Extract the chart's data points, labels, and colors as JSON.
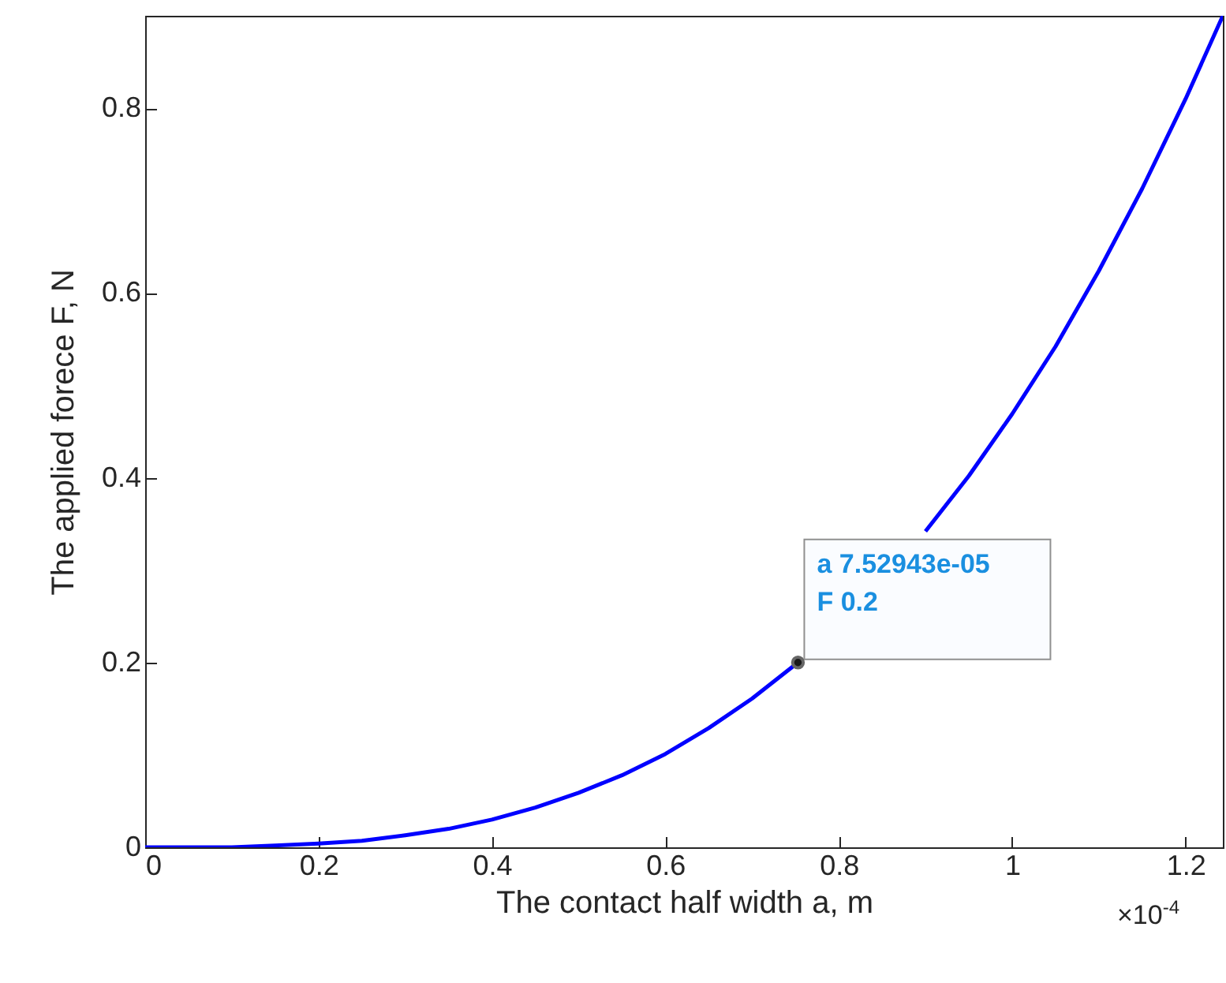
{
  "chart_data": {
    "type": "line",
    "xlabel": "The contact half width a, m",
    "ylabel": "The applied forece F, N",
    "x": [
      0,
      0.05,
      0.1,
      0.15,
      0.2,
      0.25,
      0.3,
      0.35,
      0.4,
      0.45,
      0.5,
      0.55,
      0.6,
      0.65,
      0.7,
      0.752943,
      0.8,
      0.85,
      0.9,
      0.95,
      1.0,
      1.05,
      1.1,
      1.15,
      1.2,
      1.243
    ],
    "series": [
      {
        "color": "#0000ff",
        "values": [
          0,
          0,
          0,
          0.002,
          0.004,
          0.007,
          0.013,
          0.02,
          0.03,
          0.043,
          0.059,
          0.078,
          0.101,
          0.129,
          0.161,
          0.2,
          null,
          null,
          0.342,
          0.402,
          0.469,
          0.542,
          0.624,
          0.713,
          0.81,
          0.9
        ]
      }
    ],
    "xlim": [
      0,
      1.243
    ],
    "xticks": [
      0,
      0.2,
      0.4,
      0.6,
      0.8,
      1,
      1.2
    ],
    "ylim": [
      0,
      0.9
    ],
    "yticks": [
      0,
      0.2,
      0.4,
      0.6,
      0.8
    ],
    "grid": false,
    "annotations": [
      {
        "text": "a 7.52943e-05\nF 0.2",
        "x": 0.752943,
        "y": 0.2
      },
      "×10$^{-4}$"
    ]
  }
}
